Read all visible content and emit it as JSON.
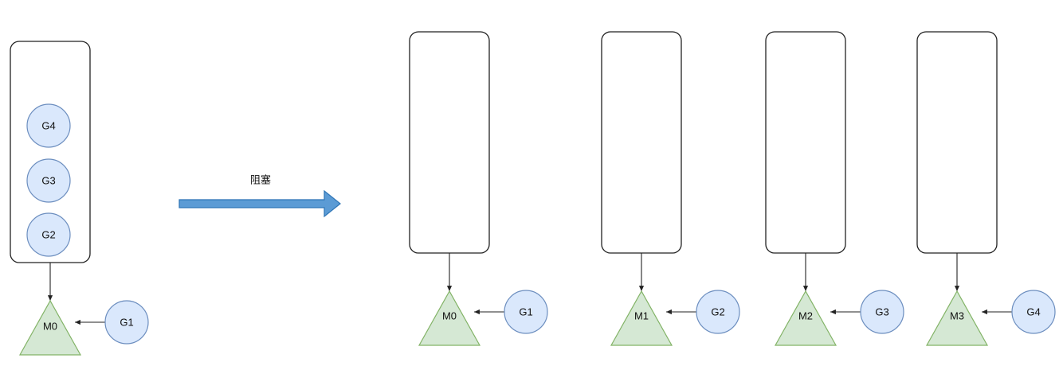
{
  "colors": {
    "goroutine_fill": "#dae8fc",
    "goroutine_stroke": "#6c8ebf",
    "machine_fill": "#d5e8d4",
    "machine_stroke": "#82b366",
    "arrow_fill": "#5b9bd5",
    "arrow_stroke": "#2e75b6"
  },
  "before": {
    "queue_items": [
      "G4",
      "G3",
      "G2"
    ],
    "machine": "M0",
    "running": "G1"
  },
  "transition": {
    "label": "阻塞"
  },
  "after": [
    {
      "machine": "M0",
      "running": "G1"
    },
    {
      "machine": "M1",
      "running": "G2"
    },
    {
      "machine": "M2",
      "running": "G3"
    },
    {
      "machine": "M3",
      "running": "G4"
    }
  ]
}
